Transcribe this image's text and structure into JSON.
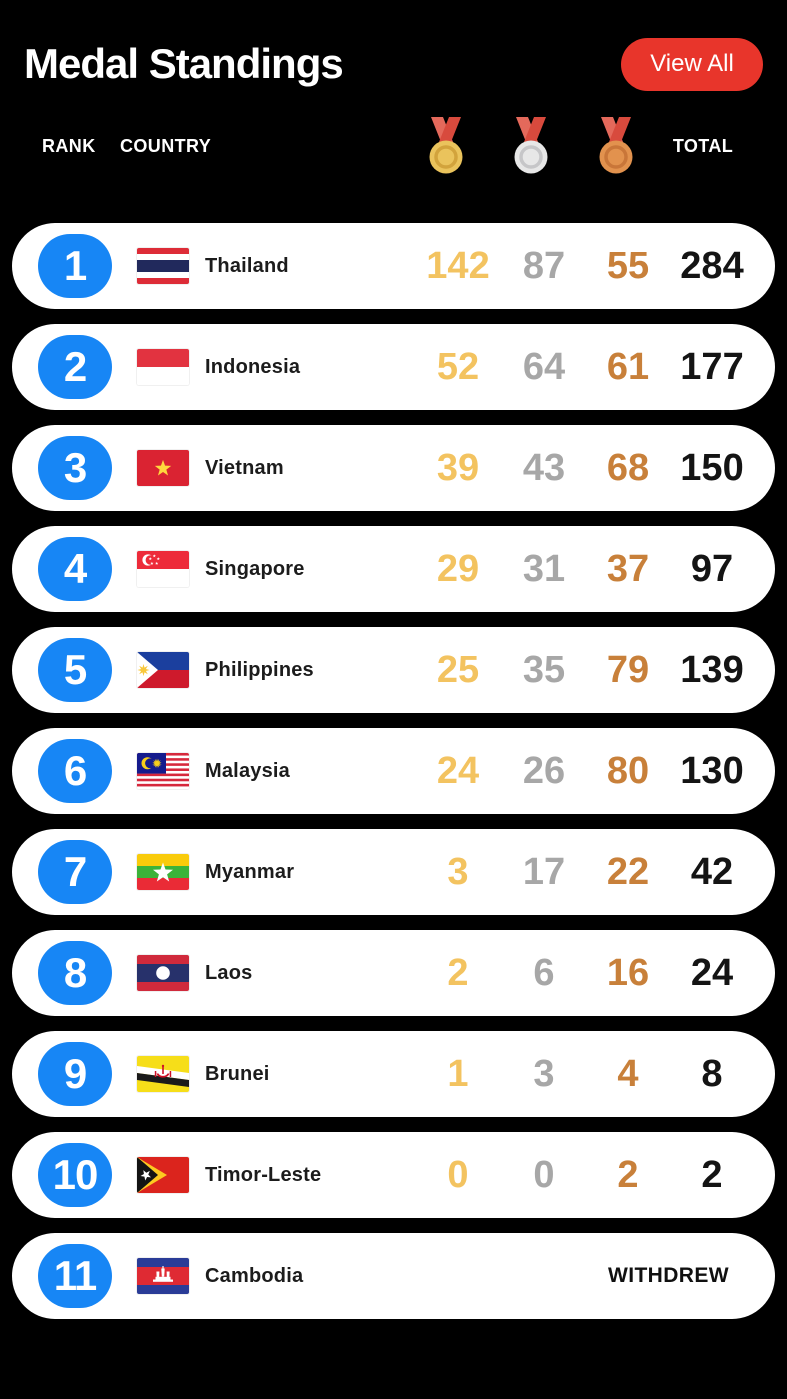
{
  "screen": {
    "title": "Medal Standings",
    "view_all_label": "View All"
  },
  "table": {
    "columns": {
      "rank_label": "RANK",
      "country_label": "COUNTRY",
      "gold_icon": "gold-medal-icon",
      "silver_icon": "silver-medal-icon",
      "bronze_icon": "bronze-medal-icon",
      "total_label": "TOTAL"
    },
    "rows": [
      {
        "rank": "1",
        "country": "Thailand",
        "flag": "thailand-flag",
        "gold": "142",
        "silver": "87",
        "bronze": "55",
        "total": "284"
      },
      {
        "rank": "2",
        "country": "Indonesia",
        "flag": "indonesia-flag",
        "gold": "52",
        "silver": "64",
        "bronze": "61",
        "total": "177"
      },
      {
        "rank": "3",
        "country": "Vietnam",
        "flag": "vietnam-flag",
        "gold": "39",
        "silver": "43",
        "bronze": "68",
        "total": "150"
      },
      {
        "rank": "4",
        "country": "Singapore",
        "flag": "singapore-flag",
        "gold": "29",
        "silver": "31",
        "bronze": "37",
        "total": "97"
      },
      {
        "rank": "5",
        "country": "Philippines",
        "flag": "philippines-flag",
        "gold": "25",
        "silver": "35",
        "bronze": "79",
        "total": "139"
      },
      {
        "rank": "6",
        "country": "Malaysia",
        "flag": "malaysia-flag",
        "gold": "24",
        "silver": "26",
        "bronze": "80",
        "total": "130"
      },
      {
        "rank": "7",
        "country": "Myanmar",
        "flag": "myanmar-flag",
        "gold": "3",
        "silver": "17",
        "bronze": "22",
        "total": "42"
      },
      {
        "rank": "8",
        "country": "Laos",
        "flag": "laos-flag",
        "gold": "2",
        "silver": "6",
        "bronze": "16",
        "total": "24"
      },
      {
        "rank": "9",
        "country": "Brunei",
        "flag": "brunei-flag",
        "gold": "1",
        "silver": "3",
        "bronze": "4",
        "total": "8"
      },
      {
        "rank": "10",
        "country": "Timor-Leste",
        "flag": "timor-leste-flag",
        "gold": "0",
        "silver": "0",
        "bronze": "2",
        "total": "2"
      },
      {
        "rank": "11",
        "country": "Cambodia",
        "flag": "cambodia-flag",
        "status": "WITHDREW"
      }
    ]
  },
  "colors": {
    "page_background": "#000000",
    "row_background": "#FFFFFF",
    "accent_blue": "#1786F5",
    "button_red": "#E8352B",
    "gold": "#F3C360",
    "silver": "#A7A7A7",
    "bronze": "#C8803A",
    "total_text": "#141414"
  }
}
